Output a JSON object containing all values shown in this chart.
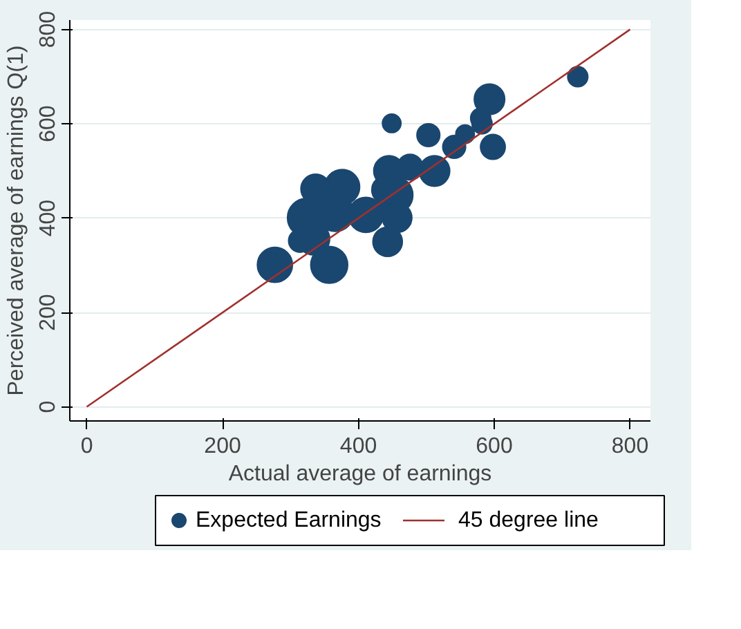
{
  "chart_data": {
    "type": "bubble",
    "xlabel": "Actual average of earnings",
    "ylabel": "Perceived average of earnings Q(1)",
    "xlim": [
      -25,
      830
    ],
    "ylim": [
      -30,
      820
    ],
    "xticks": [
      0,
      200,
      400,
      600,
      800
    ],
    "yticks": [
      0,
      200,
      400,
      600,
      800
    ],
    "grid": "y",
    "legend": "bottom",
    "series": [
      {
        "name": "Expected Earnings",
        "color": "#1a476f",
        "x": [
          723,
          593,
          580,
          582,
          449,
          503,
          557,
          541,
          598,
          512,
          445,
          476,
          453,
          440,
          376,
          337,
          411,
          457,
          324,
          366,
          334,
          314,
          443,
          277,
          357
        ],
        "values": [
          700,
          652,
          612,
          600,
          601,
          576,
          578,
          551,
          551,
          500,
          500,
          508,
          449,
          460,
          466,
          462,
          407,
          401,
          401,
          411,
          356,
          352,
          350,
          301,
          301
        ],
        "sizes": [
          0.27,
          0.62,
          0.27,
          0.27,
          0.23,
          0.35,
          0.23,
          0.35,
          0.41,
          0.62,
          0.62,
          0.44,
          0.91,
          0.51,
          0.82,
          0.58,
          0.82,
          0.58,
          1.0,
          0.91,
          0.69,
          0.35,
          0.58,
          0.82,
          0.91
        ]
      },
      {
        "name": "45 degree line",
        "type": "line",
        "color": "#a0302f",
        "x": [
          0,
          800
        ],
        "values": [
          0,
          800
        ]
      }
    ]
  }
}
